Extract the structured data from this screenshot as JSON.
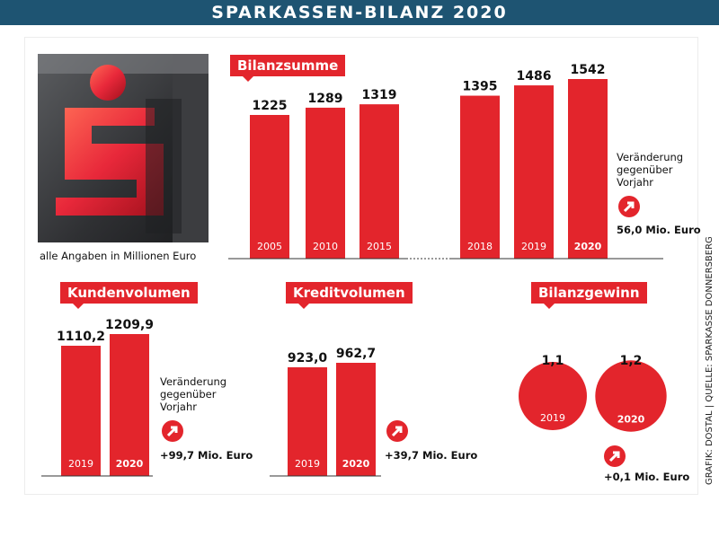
{
  "header": {
    "title": "SPARKASSEN-BILANZ 2020"
  },
  "note": "alle Angaben in Millionen Euro",
  "change_text": {
    "l1": "Veränderung",
    "l2": "gegenüber",
    "l3": "Vorjahr"
  },
  "credit": "GRAFIK: DOSTAL | QUELLE: SPARKASSE DONNERSBERG",
  "colors": {
    "red": "#e3252c",
    "header": "#1e5472"
  },
  "icons": {
    "increase": "arrow-up-right-icon"
  },
  "chart_data": [
    {
      "type": "bar",
      "title": "Bilanzsumme",
      "categories": [
        "2005",
        "2010",
        "2015",
        "2018",
        "2019",
        "2020"
      ],
      "values": [
        1225,
        1289,
        1319,
        1395,
        1486,
        1542
      ],
      "value_labels": [
        "1225",
        "1289",
        "1319",
        "1395",
        "1486",
        "1542"
      ],
      "highlight": "2020",
      "delta": "56,0 Mio. Euro"
    },
    {
      "type": "bar",
      "title": "Kundenvolumen",
      "categories": [
        "2019",
        "2020"
      ],
      "values": [
        1110.2,
        1209.9
      ],
      "value_labels": [
        "1110,2",
        "1209,9"
      ],
      "highlight": "2020",
      "delta": "+99,7 Mio. Euro"
    },
    {
      "type": "bar",
      "title": "Kreditvolumen",
      "categories": [
        "2019",
        "2020"
      ],
      "values": [
        923.0,
        962.7
      ],
      "value_labels": [
        "923,0",
        "962,7"
      ],
      "highlight": "2020",
      "delta": "+39,7 Mio. Euro"
    },
    {
      "type": "bubble",
      "title": "Bilanzgewinn",
      "categories": [
        "2019",
        "2020"
      ],
      "values": [
        1.1,
        1.2
      ],
      "value_labels": [
        "1,1",
        "1,2"
      ],
      "highlight": "2020",
      "delta": "+0,1 Mio. Euro"
    }
  ]
}
